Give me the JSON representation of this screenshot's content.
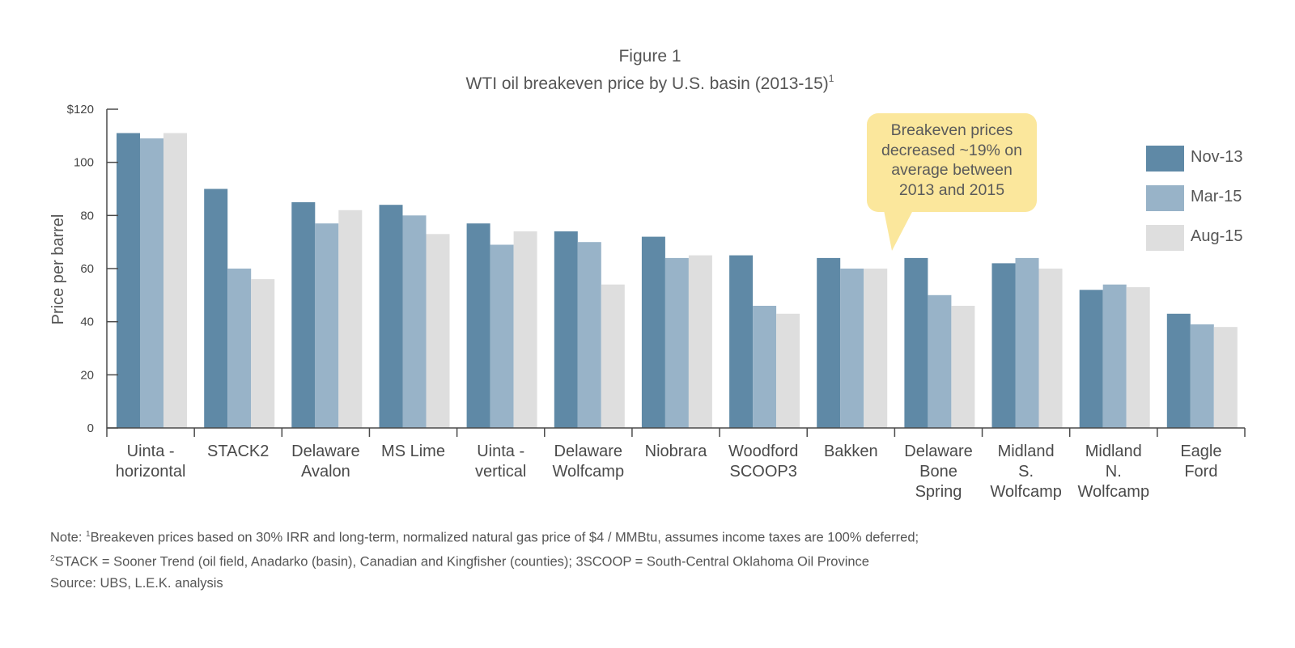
{
  "chart_data": {
    "type": "bar",
    "title": "Figure 1",
    "subtitle": "WTI oil breakeven price by U.S. basin (2013-15)",
    "subtitle_superscript": "1",
    "ylabel": "Price per barrel",
    "xlabel": "",
    "ylim": [
      0,
      120
    ],
    "yticks": [
      0,
      20,
      40,
      60,
      80,
      100,
      120
    ],
    "ytick_labels": [
      "0",
      "20",
      "40",
      "60",
      "80",
      "100",
      "$120"
    ],
    "grid": false,
    "legend_position": "right",
    "categories": [
      {
        "label": "Uinta - horizontal",
        "lines": [
          "Uinta -",
          "horizontal"
        ]
      },
      {
        "label": "STACK2",
        "lines": [
          "STACK2"
        ]
      },
      {
        "label": "Delaware Avalon",
        "lines": [
          "Delaware",
          "Avalon"
        ]
      },
      {
        "label": "MS Lime",
        "lines": [
          "MS Lime"
        ]
      },
      {
        "label": "Uinta - vertical",
        "lines": [
          "Uinta -",
          "vertical"
        ]
      },
      {
        "label": "Delaware Wolfcamp",
        "lines": [
          "Delaware",
          "Wolfcamp"
        ]
      },
      {
        "label": "Niobrara",
        "lines": [
          "Niobrara"
        ]
      },
      {
        "label": "Woodford SCOOP3",
        "lines": [
          "Woodford",
          "SCOOP3"
        ]
      },
      {
        "label": "Bakken",
        "lines": [
          "Bakken"
        ]
      },
      {
        "label": "Delaware Bone Spring",
        "lines": [
          "Delaware",
          "Bone",
          "Spring"
        ]
      },
      {
        "label": "Midland S. Wolfcamp",
        "lines": [
          "Midland",
          "S.",
          "Wolfcamp"
        ]
      },
      {
        "label": "Midland N. Wolfcamp",
        "lines": [
          "Midland",
          "N.",
          "Wolfcamp"
        ]
      },
      {
        "label": "Eagle Ford",
        "lines": [
          "Eagle",
          "Ford"
        ]
      }
    ],
    "series": [
      {
        "name": "Nov-13",
        "color": "#5f89a6",
        "values": [
          111,
          90,
          85,
          84,
          77,
          74,
          72,
          65,
          64,
          64,
          62,
          52,
          43
        ]
      },
      {
        "name": "Mar-15",
        "color": "#98b3c8",
        "values": [
          109,
          60,
          77,
          80,
          69,
          70,
          64,
          46,
          60,
          50,
          64,
          54,
          39
        ]
      },
      {
        "name": "Aug-15",
        "color": "#dedede",
        "values": [
          111,
          56,
          82,
          73,
          74,
          54,
          65,
          43,
          60,
          46,
          60,
          53,
          38
        ]
      }
    ],
    "annotation": {
      "lines": [
        "Breakeven prices",
        "decreased ~19% on",
        "average between",
        "2013 and 2015"
      ],
      "color": "#fbe79c"
    }
  },
  "notes": {
    "line1_prefix": "Note: ",
    "line1_sup": "1",
    "line1_text": "Breakeven prices based on 30% IRR and long-term, normalized natural gas price of $4 / MMBtu, assumes income taxes are 100% deferred;",
    "line2_sup": "2",
    "line2_text": "STACK = Sooner Trend (oil field, Anadarko (basin), Canadian and Kingfisher (counties); 3SCOOP = South-Central Oklahoma Oil Province",
    "source": "Source: UBS, L.E.K. analysis"
  }
}
